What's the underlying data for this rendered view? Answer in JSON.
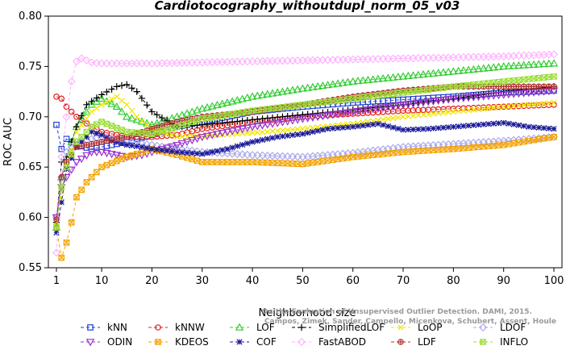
{
  "chart_data": {
    "type": "line",
    "title": "Cardiotocography_withoutdupl_norm_05_v03",
    "xlabel": "Neighborhood size",
    "ylabel": "ROC AUC",
    "xlim": [
      1,
      100
    ],
    "ylim": [
      0.55,
      0.8
    ],
    "x_ticks": [
      1,
      10,
      20,
      30,
      40,
      50,
      60,
      70,
      80,
      90,
      100
    ],
    "y_ticks": [
      "0.55",
      "0.60",
      "0.65",
      "0.70",
      "0.75",
      "0.80"
    ],
    "grid": false,
    "legend_position": "bottom",
    "watermark": [
      "Campos, Zimek, Sander, Campello, Micenkova, Schubert, Assent, Houle",
      "On the Evaluation of Unsupervised Outlier Detection. DAMI, 2015."
    ],
    "series": [
      {
        "name": "kNN",
        "color": "#1f3fd6",
        "marker": "square",
        "dash": "4,3",
        "points": [
          [
            1,
            0.692
          ],
          [
            2,
            0.668
          ],
          [
            3,
            0.678
          ],
          [
            5,
            0.672
          ],
          [
            8,
            0.668
          ],
          [
            10,
            0.67
          ],
          [
            15,
            0.675
          ],
          [
            20,
            0.682
          ],
          [
            25,
            0.69
          ],
          [
            30,
            0.695
          ],
          [
            40,
            0.705
          ],
          [
            50,
            0.71
          ],
          [
            60,
            0.714
          ],
          [
            70,
            0.717
          ],
          [
            80,
            0.72
          ],
          [
            90,
            0.724
          ],
          [
            100,
            0.726
          ]
        ]
      },
      {
        "name": "kNNW",
        "color": "#e02020",
        "marker": "circle",
        "dash": "4,3",
        "points": [
          [
            1,
            0.72
          ],
          [
            2,
            0.718
          ],
          [
            3,
            0.71
          ],
          [
            5,
            0.7
          ],
          [
            8,
            0.69
          ],
          [
            10,
            0.685
          ],
          [
            15,
            0.68
          ],
          [
            20,
            0.68
          ],
          [
            25,
            0.682
          ],
          [
            30,
            0.688
          ],
          [
            40,
            0.695
          ],
          [
            50,
            0.7
          ],
          [
            60,
            0.703
          ],
          [
            70,
            0.706
          ],
          [
            80,
            0.708
          ],
          [
            90,
            0.71
          ],
          [
            100,
            0.712
          ]
        ]
      },
      {
        "name": "LOF",
        "color": "#33cc33",
        "marker": "triangle",
        "dash": "4,3",
        "points": [
          [
            1,
            0.59
          ],
          [
            2,
            0.64
          ],
          [
            3,
            0.66
          ],
          [
            5,
            0.69
          ],
          [
            8,
            0.712
          ],
          [
            10,
            0.718
          ],
          [
            13,
            0.71
          ],
          [
            15,
            0.7
          ],
          [
            20,
            0.692
          ],
          [
            25,
            0.7
          ],
          [
            30,
            0.708
          ],
          [
            40,
            0.72
          ],
          [
            50,
            0.728
          ],
          [
            60,
            0.735
          ],
          [
            70,
            0.74
          ],
          [
            80,
            0.745
          ],
          [
            90,
            0.75
          ],
          [
            100,
            0.753
          ]
        ]
      },
      {
        "name": "SimplifiedLOF",
        "color": "#000000",
        "marker": "plus",
        "dash": "4,3",
        "points": [
          [
            1,
            0.595
          ],
          [
            2,
            0.655
          ],
          [
            3,
            0.66
          ],
          [
            5,
            0.69
          ],
          [
            7,
            0.712
          ],
          [
            10,
            0.722
          ],
          [
            13,
            0.73
          ],
          [
            15,
            0.732
          ],
          [
            17,
            0.725
          ],
          [
            20,
            0.705
          ],
          [
            25,
            0.69
          ],
          [
            30,
            0.692
          ],
          [
            40,
            0.697
          ],
          [
            50,
            0.702
          ],
          [
            60,
            0.707
          ],
          [
            70,
            0.712
          ],
          [
            80,
            0.718
          ],
          [
            90,
            0.725
          ],
          [
            100,
            0.73
          ]
        ]
      },
      {
        "name": "LoOP",
        "color": "#f2e600",
        "marker": "x",
        "dash": "4,3",
        "points": [
          [
            1,
            0.595
          ],
          [
            2,
            0.62
          ],
          [
            3,
            0.65
          ],
          [
            5,
            0.685
          ],
          [
            8,
            0.705
          ],
          [
            10,
            0.712
          ],
          [
            13,
            0.72
          ],
          [
            15,
            0.712
          ],
          [
            17,
            0.7
          ],
          [
            20,
            0.688
          ],
          [
            25,
            0.68
          ],
          [
            30,
            0.681
          ],
          [
            40,
            0.684
          ],
          [
            50,
            0.688
          ],
          [
            60,
            0.693
          ],
          [
            70,
            0.7
          ],
          [
            80,
            0.705
          ],
          [
            90,
            0.71
          ],
          [
            100,
            0.714
          ]
        ]
      },
      {
        "name": "LDOF",
        "color": "#aaaaee",
        "marker": "diamond",
        "dash": "4,3",
        "points": [
          [
            1,
            0.6
          ],
          [
            2,
            0.64
          ],
          [
            3,
            0.665
          ],
          [
            5,
            0.675
          ],
          [
            10,
            0.68
          ],
          [
            15,
            0.675
          ],
          [
            20,
            0.672
          ],
          [
            25,
            0.668
          ],
          [
            30,
            0.665
          ],
          [
            40,
            0.662
          ],
          [
            50,
            0.66
          ],
          [
            60,
            0.664
          ],
          [
            70,
            0.67
          ],
          [
            80,
            0.673
          ],
          [
            90,
            0.676
          ],
          [
            100,
            0.68
          ]
        ]
      },
      {
        "name": "ODIN",
        "color": "#9933cc",
        "marker": "triangle-down",
        "dash": "4,3",
        "points": [
          [
            1,
            0.6
          ],
          [
            2,
            0.63
          ],
          [
            3,
            0.64
          ],
          [
            5,
            0.655
          ],
          [
            8,
            0.665
          ],
          [
            10,
            0.665
          ],
          [
            12,
            0.663
          ],
          [
            15,
            0.66
          ],
          [
            18,
            0.662
          ],
          [
            20,
            0.665
          ],
          [
            25,
            0.672
          ],
          [
            30,
            0.68
          ],
          [
            40,
            0.69
          ],
          [
            50,
            0.698
          ],
          [
            60,
            0.705
          ],
          [
            70,
            0.712
          ],
          [
            80,
            0.718
          ],
          [
            90,
            0.722
          ],
          [
            100,
            0.726
          ]
        ]
      },
      {
        "name": "KDEOS",
        "color": "#f5a300",
        "marker": "square-x",
        "dash": "4,3",
        "points": [
          [
            1,
            0.59
          ],
          [
            2,
            0.56
          ],
          [
            3,
            0.575
          ],
          [
            4,
            0.595
          ],
          [
            5,
            0.62
          ],
          [
            7,
            0.635
          ],
          [
            10,
            0.65
          ],
          [
            15,
            0.66
          ],
          [
            20,
            0.668
          ],
          [
            25,
            0.662
          ],
          [
            30,
            0.655
          ],
          [
            40,
            0.655
          ],
          [
            50,
            0.653
          ],
          [
            60,
            0.66
          ],
          [
            70,
            0.665
          ],
          [
            80,
            0.668
          ],
          [
            90,
            0.672
          ],
          [
            100,
            0.68
          ]
        ]
      },
      {
        "name": "COF",
        "color": "#1a1a99",
        "marker": "star",
        "dash": "4,3",
        "points": [
          [
            1,
            0.585
          ],
          [
            2,
            0.615
          ],
          [
            3,
            0.648
          ],
          [
            5,
            0.67
          ],
          [
            8,
            0.685
          ],
          [
            10,
            0.682
          ],
          [
            12,
            0.676
          ],
          [
            15,
            0.672
          ],
          [
            18,
            0.67
          ],
          [
            20,
            0.668
          ],
          [
            25,
            0.665
          ],
          [
            30,
            0.663
          ],
          [
            35,
            0.668
          ],
          [
            40,
            0.675
          ],
          [
            45,
            0.68
          ],
          [
            50,
            0.683
          ],
          [
            55,
            0.688
          ],
          [
            60,
            0.69
          ],
          [
            65,
            0.693
          ],
          [
            70,
            0.687
          ],
          [
            75,
            0.688
          ],
          [
            80,
            0.69
          ],
          [
            85,
            0.692
          ],
          [
            90,
            0.694
          ],
          [
            95,
            0.69
          ],
          [
            100,
            0.688
          ]
        ]
      },
      {
        "name": "FastABOD",
        "color": "#ffb3ff",
        "marker": "diamond",
        "dash": "4,3",
        "points": [
          [
            1,
            0.565
          ],
          [
            2,
            0.66
          ],
          [
            3,
            0.7
          ],
          [
            4,
            0.735
          ],
          [
            5,
            0.755
          ],
          [
            6,
            0.758
          ],
          [
            8,
            0.754
          ],
          [
            10,
            0.753
          ],
          [
            15,
            0.753
          ],
          [
            20,
            0.753
          ],
          [
            30,
            0.754
          ],
          [
            40,
            0.755
          ],
          [
            50,
            0.756
          ],
          [
            60,
            0.757
          ],
          [
            70,
            0.758
          ],
          [
            80,
            0.759
          ],
          [
            90,
            0.76
          ],
          [
            100,
            0.762
          ]
        ]
      },
      {
        "name": "LDF",
        "color": "#b03030",
        "marker": "circle-plus",
        "dash": "4,3",
        "points": [
          [
            1,
            0.598
          ],
          [
            2,
            0.64
          ],
          [
            3,
            0.655
          ],
          [
            5,
            0.67
          ],
          [
            10,
            0.675
          ],
          [
            15,
            0.68
          ],
          [
            20,
            0.688
          ],
          [
            25,
            0.695
          ],
          [
            30,
            0.7
          ],
          [
            40,
            0.705
          ],
          [
            50,
            0.712
          ],
          [
            60,
            0.72
          ],
          [
            70,
            0.726
          ],
          [
            80,
            0.73
          ],
          [
            90,
            0.73
          ],
          [
            100,
            0.73
          ]
        ]
      },
      {
        "name": "INFLO",
        "color": "#99dd33",
        "marker": "square-x",
        "dash": "4,3",
        "points": [
          [
            1,
            0.59
          ],
          [
            2,
            0.63
          ],
          [
            3,
            0.65
          ],
          [
            5,
            0.675
          ],
          [
            8,
            0.69
          ],
          [
            10,
            0.695
          ],
          [
            15,
            0.685
          ],
          [
            20,
            0.683
          ],
          [
            25,
            0.69
          ],
          [
            30,
            0.698
          ],
          [
            40,
            0.706
          ],
          [
            50,
            0.712
          ],
          [
            60,
            0.718
          ],
          [
            70,
            0.724
          ],
          [
            80,
            0.73
          ],
          [
            90,
            0.735
          ],
          [
            100,
            0.74
          ]
        ]
      }
    ]
  }
}
